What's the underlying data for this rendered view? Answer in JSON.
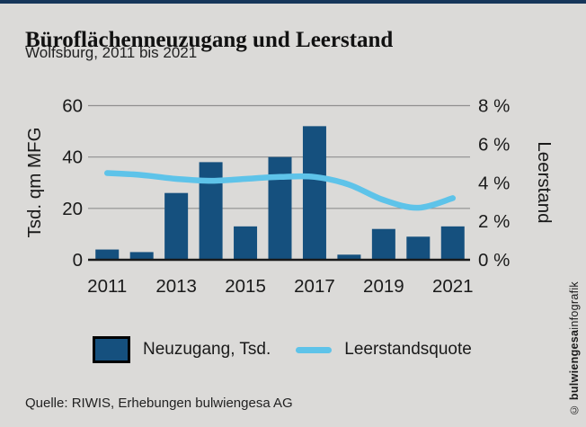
{
  "header": {
    "title": "Büroflächenneuzugang und Leerstand",
    "subtitle": "Wolfsburg, 2011 bis 2021"
  },
  "chart_data": {
    "type": "bar",
    "title": "Büroflächenneuzugang und Leerstand",
    "subtitle": "Wolfsburg, 2011 bis 2021",
    "categories": [
      2011,
      2012,
      2013,
      2014,
      2015,
      2016,
      2017,
      2018,
      2019,
      2020,
      2021
    ],
    "x_tick_labels": [
      "2011",
      "2013",
      "2015",
      "2017",
      "2019",
      "2021"
    ],
    "series": [
      {
        "name": "Neuzugang, Tsd.",
        "type": "bar",
        "axis": "left",
        "color": "#15507e",
        "values": [
          4,
          3,
          26,
          38,
          13,
          40,
          52,
          2,
          12,
          9,
          13
        ]
      },
      {
        "name": "Leerstandsquote",
        "type": "line",
        "axis": "right",
        "color": "#5ec3e9",
        "values": [
          4.5,
          4.4,
          4.2,
          4.1,
          4.2,
          4.3,
          4.3,
          3.9,
          3.1,
          2.7,
          3.2
        ]
      }
    ],
    "left_axis": {
      "label": "Tsd. qm MFG",
      "ticks": [
        0,
        20,
        40,
        60
      ],
      "min": 0,
      "max": 60
    },
    "right_axis": {
      "label": "Leerstand",
      "ticks": [
        "0 %",
        "2 %",
        "4 %",
        "6 %",
        "8 %"
      ],
      "tick_values": [
        0,
        2,
        4,
        6,
        8
      ],
      "min": 0,
      "max": 8
    },
    "grid": true,
    "legend_position": "bottom"
  },
  "legend": {
    "bar_label": "Neuzugang, Tsd.",
    "line_label": "Leerstandsquote"
  },
  "footer": {
    "source": "Quelle: RIWIS, Erhebungen bulwiengesa AG"
  },
  "credit": {
    "prefix": "© ",
    "bold": "bulwiengesa",
    "rest": "infografik"
  },
  "colors": {
    "background": "#dbdad8",
    "top_bar": "#16365a",
    "bar": "#15507e",
    "line": "#5ec3e9",
    "grid": "#8f8f8f",
    "axis": "#1a1a1a"
  }
}
